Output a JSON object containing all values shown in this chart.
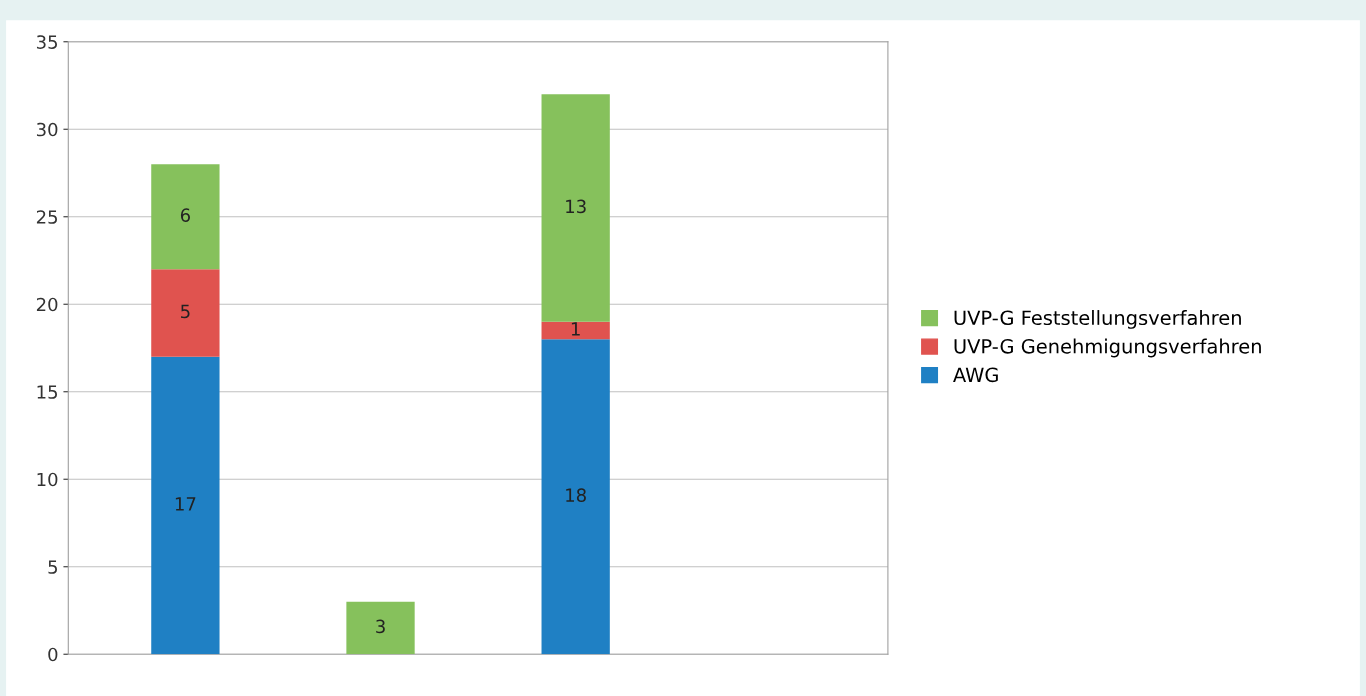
{
  "chart_data": {
    "type": "bar",
    "stacked": true,
    "categories": [
      null,
      null,
      null,
      null
    ],
    "series": [
      {
        "name": "AWG",
        "color": "#1f80c4",
        "values": [
          17,
          0,
          18,
          0
        ],
        "value_labels": [
          "17",
          null,
          "18",
          null
        ]
      },
      {
        "name": "UVP-G Genehmigungsverfahren",
        "color": "#e0534f",
        "values": [
          5,
          0,
          1,
          0
        ],
        "value_labels": [
          "5",
          null,
          "1",
          null
        ]
      },
      {
        "name": "UVP-G Feststellungsverfahren",
        "color": "#86c15c",
        "values": [
          6,
          3,
          13,
          0
        ],
        "value_labels": [
          "6",
          "3",
          "13",
          null
        ]
      }
    ],
    "ylim": [
      0,
      35
    ],
    "yticks": [
      0,
      5,
      10,
      15,
      20,
      25,
      30,
      35
    ],
    "grid": "y",
    "legend": "right",
    "tick_labels": "y"
  }
}
